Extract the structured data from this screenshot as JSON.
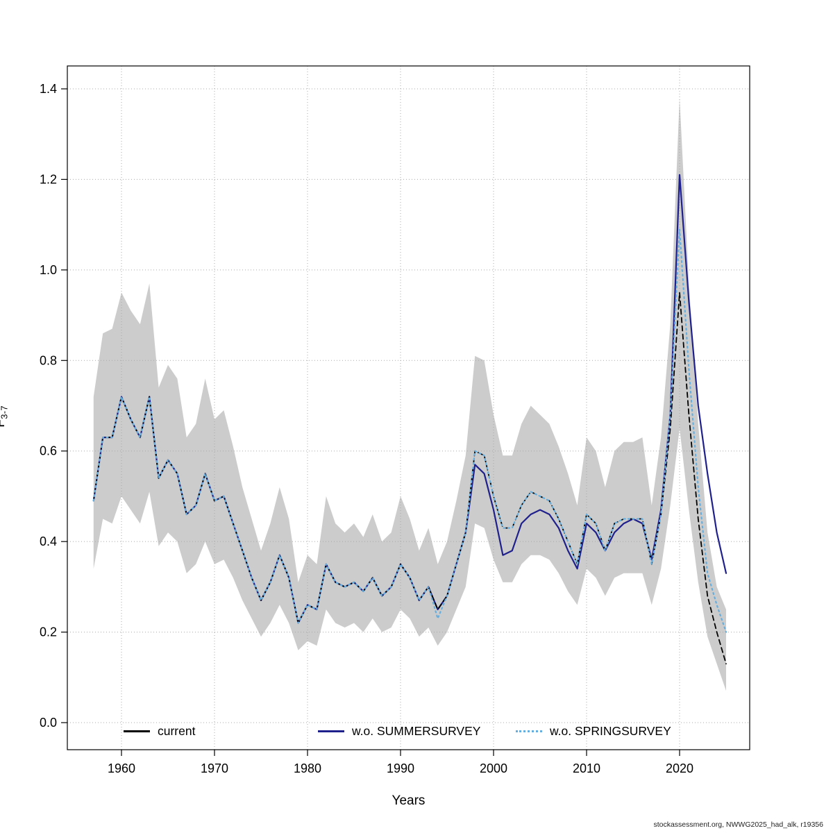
{
  "chart_data": {
    "type": "line",
    "title": "",
    "xlabel": "Years",
    "ylabel_main": "F",
    "ylabel_sub": "3-7",
    "xticks": [
      1960,
      1970,
      1980,
      1990,
      2000,
      2010,
      2020
    ],
    "yticks": [
      "0.0",
      "0.2",
      "0.4",
      "0.6",
      "0.8",
      "1.0",
      "1.2",
      "1.4"
    ],
    "xlim": [
      1954,
      2027.5
    ],
    "ylim": [
      -0.06,
      1.45
    ],
    "grid": "dotted",
    "legend_position": "bottom-inside",
    "years": [
      1957,
      1958,
      1959,
      1960,
      1961,
      1962,
      1963,
      1964,
      1965,
      1966,
      1967,
      1968,
      1969,
      1970,
      1971,
      1972,
      1973,
      1974,
      1975,
      1976,
      1977,
      1978,
      1979,
      1980,
      1981,
      1982,
      1983,
      1984,
      1985,
      1986,
      1987,
      1988,
      1989,
      1990,
      1991,
      1992,
      1993,
      1994,
      1995,
      1996,
      1997,
      1998,
      1999,
      2000,
      2001,
      2002,
      2003,
      2004,
      2005,
      2006,
      2007,
      2008,
      2009,
      2010,
      2011,
      2012,
      2013,
      2014,
      2015,
      2016,
      2017,
      2018,
      2019,
      2020,
      2021,
      2022,
      2023,
      2024,
      2025
    ],
    "band": {
      "applies_to": "current",
      "color": "#cccccc",
      "lower": [
        0.34,
        0.45,
        0.44,
        0.5,
        0.47,
        0.44,
        0.51,
        0.39,
        0.42,
        0.4,
        0.33,
        0.35,
        0.4,
        0.35,
        0.36,
        0.32,
        0.27,
        0.23,
        0.19,
        0.22,
        0.26,
        0.22,
        0.16,
        0.18,
        0.17,
        0.25,
        0.22,
        0.21,
        0.22,
        0.2,
        0.23,
        0.2,
        0.21,
        0.25,
        0.23,
        0.19,
        0.21,
        0.17,
        0.2,
        0.25,
        0.3,
        0.44,
        0.43,
        0.36,
        0.31,
        0.31,
        0.35,
        0.37,
        0.37,
        0.36,
        0.33,
        0.29,
        0.26,
        0.34,
        0.32,
        0.28,
        0.32,
        0.33,
        0.33,
        0.33,
        0.26,
        0.34,
        0.48,
        0.65,
        0.47,
        0.31,
        0.19,
        0.13,
        0.07
      ],
      "upper": [
        0.72,
        0.86,
        0.87,
        0.95,
        0.91,
        0.88,
        0.97,
        0.74,
        0.79,
        0.76,
        0.63,
        0.66,
        0.76,
        0.67,
        0.69,
        0.61,
        0.52,
        0.45,
        0.38,
        0.44,
        0.52,
        0.45,
        0.31,
        0.37,
        0.35,
        0.5,
        0.44,
        0.42,
        0.44,
        0.41,
        0.46,
        0.4,
        0.42,
        0.5,
        0.45,
        0.38,
        0.43,
        0.35,
        0.4,
        0.49,
        0.59,
        0.81,
        0.8,
        0.68,
        0.59,
        0.59,
        0.66,
        0.7,
        0.68,
        0.66,
        0.61,
        0.55,
        0.48,
        0.63,
        0.6,
        0.52,
        0.6,
        0.62,
        0.62,
        0.63,
        0.48,
        0.63,
        0.88,
        1.38,
        0.97,
        0.66,
        0.42,
        0.3,
        0.25
      ]
    },
    "series": [
      {
        "name": "current",
        "color": "#000000",
        "style": "dashed",
        "width": 1.8,
        "values": [
          0.49,
          0.63,
          0.63,
          0.72,
          0.67,
          0.63,
          0.72,
          0.54,
          0.58,
          0.55,
          0.46,
          0.48,
          0.55,
          0.49,
          0.5,
          0.44,
          0.38,
          0.32,
          0.27,
          0.31,
          0.37,
          0.32,
          0.22,
          0.26,
          0.25,
          0.35,
          0.31,
          0.3,
          0.31,
          0.29,
          0.32,
          0.28,
          0.3,
          0.35,
          0.32,
          0.27,
          0.3,
          0.25,
          0.28,
          0.35,
          0.42,
          0.6,
          0.59,
          0.5,
          0.43,
          0.43,
          0.48,
          0.51,
          0.5,
          0.49,
          0.45,
          0.4,
          0.35,
          0.46,
          0.44,
          0.38,
          0.44,
          0.45,
          0.45,
          0.45,
          0.35,
          0.46,
          0.65,
          0.95,
          0.68,
          0.45,
          0.28,
          0.2,
          0.13
        ]
      },
      {
        "name": "w.o. SUMMERSURVEY",
        "color": "#20208c",
        "style": "solid",
        "width": 2.2,
        "values": [
          0.49,
          0.63,
          0.63,
          0.72,
          0.67,
          0.63,
          0.72,
          0.54,
          0.58,
          0.55,
          0.46,
          0.48,
          0.55,
          0.49,
          0.5,
          0.44,
          0.38,
          0.32,
          0.27,
          0.31,
          0.37,
          0.32,
          0.22,
          0.26,
          0.25,
          0.35,
          0.31,
          0.3,
          0.31,
          0.29,
          0.32,
          0.28,
          0.3,
          0.35,
          0.32,
          0.27,
          0.3,
          0.25,
          0.28,
          0.35,
          0.42,
          0.57,
          0.55,
          0.47,
          0.37,
          0.38,
          0.44,
          0.46,
          0.47,
          0.46,
          0.43,
          0.38,
          0.34,
          0.44,
          0.42,
          0.38,
          0.42,
          0.44,
          0.45,
          0.44,
          0.36,
          0.47,
          0.68,
          1.21,
          0.93,
          0.7,
          0.55,
          0.42,
          0.33
        ]
      },
      {
        "name": "w.o. SPRINGSURVEY",
        "color": "#66aedd",
        "style": "dotted",
        "width": 2.2,
        "values": [
          0.49,
          0.63,
          0.63,
          0.72,
          0.67,
          0.63,
          0.72,
          0.54,
          0.58,
          0.55,
          0.46,
          0.48,
          0.55,
          0.49,
          0.5,
          0.44,
          0.38,
          0.32,
          0.27,
          0.31,
          0.37,
          0.32,
          0.22,
          0.26,
          0.25,
          0.35,
          0.31,
          0.3,
          0.31,
          0.29,
          0.32,
          0.28,
          0.3,
          0.35,
          0.32,
          0.27,
          0.3,
          0.23,
          0.28,
          0.35,
          0.42,
          0.6,
          0.59,
          0.5,
          0.43,
          0.43,
          0.48,
          0.51,
          0.5,
          0.49,
          0.45,
          0.4,
          0.35,
          0.46,
          0.44,
          0.38,
          0.44,
          0.45,
          0.45,
          0.45,
          0.35,
          0.46,
          0.68,
          1.09,
          0.78,
          0.52,
          0.33,
          0.26,
          0.2
        ]
      }
    ],
    "colors": {
      "band": "#cccccc",
      "grid": "#a8a8a8",
      "axis": "#000000"
    }
  },
  "footer": {
    "text": "stockassessment.org, NWWG2025_had_alk, r19356"
  }
}
